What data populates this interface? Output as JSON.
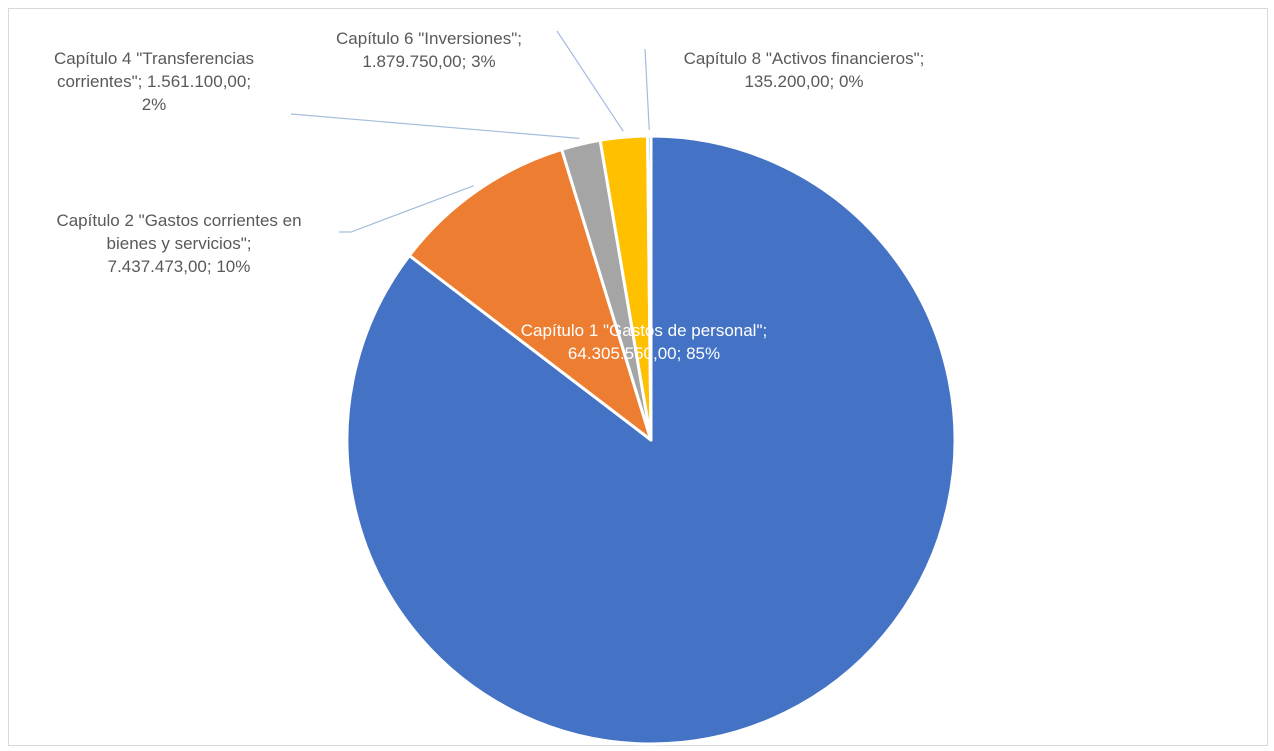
{
  "chart_data": {
    "type": "pie",
    "title": "",
    "slices": [
      {
        "label_lines": [
          "Capítulo 1 \"Gastos de personal\";",
          "64.305.550,00; 85%"
        ],
        "name": "Capítulo 1 \"Gastos de personal\"",
        "value": 64305550.0,
        "percent_label": "85%",
        "color": "#4472C4"
      },
      {
        "label_lines": [
          "Capítulo 2 \"Gastos corrientes en",
          "bienes y servicios\";",
          "7.437.473,00; 10%"
        ],
        "name": "Capítulo 2 \"Gastos corrientes en bienes y servicios\"",
        "value": 7437473.0,
        "percent_label": "10%",
        "color": "#ED7D31"
      },
      {
        "label_lines": [
          "Capítulo 4 \"Transferencias",
          "corrientes\"; 1.561.100,00;",
          "2%"
        ],
        "name": "Capítulo 4 \"Transferencias corrientes\"",
        "value": 1561100.0,
        "percent_label": "2%",
        "color": "#A5A5A5"
      },
      {
        "label_lines": [
          "Capítulo 6 \"Inversiones\";",
          "1.879.750,00; 3%"
        ],
        "name": "Capítulo 6 \"Inversiones\"",
        "value": 1879750.0,
        "percent_label": "3%",
        "color": "#FFC000"
      },
      {
        "label_lines": [
          "Capítulo 8 \"Activos financieros\";",
          "135.200,00; 0%"
        ],
        "name": "Capítulo 8 \"Activos financieros\"",
        "value": 135200.0,
        "percent_label": "0%",
        "color": "#5B9BD5"
      }
    ],
    "legend": "none",
    "leader_line_color": "#A6BDDB"
  }
}
